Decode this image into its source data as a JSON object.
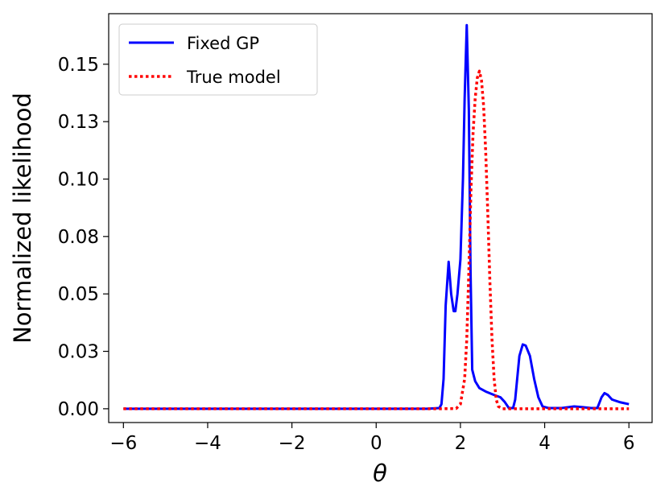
{
  "chart_data": {
    "type": "line",
    "title": "",
    "xlabel": "θ",
    "ylabel": "Normalized likelihood",
    "xlim": [
      -6.35,
      6.55
    ],
    "ylim": [
      -0.006,
      0.172
    ],
    "xticks": [
      -6,
      -4,
      -2,
      0,
      2,
      4,
      6
    ],
    "xtick_labels": [
      "−6",
      "−4",
      "−2",
      "0",
      "2",
      "4",
      "6"
    ],
    "yticks": [
      0.0,
      0.025,
      0.05,
      0.075,
      0.1,
      0.125,
      0.15
    ],
    "ytick_labels": [
      "0.00",
      "0.03",
      "0.05",
      "0.08",
      "0.10",
      "0.13",
      "0.15"
    ],
    "grid": false,
    "legend_position": "top-left",
    "series": [
      {
        "name": "Fixed GP",
        "color": "#0000ff",
        "style": "solid",
        "x": [
          -6,
          -4,
          -2,
          0,
          1.2,
          1.5,
          1.55,
          1.6,
          1.65,
          1.72,
          1.78,
          1.84,
          1.88,
          1.93,
          2.0,
          2.06,
          2.1,
          2.15,
          2.2,
          2.24,
          2.28,
          2.35,
          2.45,
          2.6,
          2.8,
          2.95,
          3.05,
          3.15,
          3.25,
          3.3,
          3.4,
          3.48,
          3.55,
          3.65,
          3.75,
          3.85,
          3.95,
          4.1,
          4.4,
          4.7,
          4.9,
          5.1,
          5.25,
          5.35,
          5.42,
          5.5,
          5.6,
          5.8,
          6.0
        ],
        "y": [
          0,
          0,
          0,
          0,
          0,
          0.0003,
          0.002,
          0.013,
          0.045,
          0.064,
          0.05,
          0.0425,
          0.0425,
          0.05,
          0.065,
          0.1,
          0.135,
          0.167,
          0.13,
          0.06,
          0.017,
          0.012,
          0.009,
          0.0075,
          0.006,
          0.005,
          0.003,
          0.0003,
          0.0003,
          0.004,
          0.023,
          0.028,
          0.0275,
          0.023,
          0.013,
          0.005,
          0.001,
          0.0003,
          0.0003,
          0.001,
          0.0007,
          0.0003,
          0.0003,
          0.005,
          0.0068,
          0.006,
          0.004,
          0.0028,
          0.002
        ]
      },
      {
        "name": "True model",
        "color": "#ff0000",
        "style": "dotted",
        "x": [
          -6,
          -4,
          -2,
          0,
          1.5,
          1.9,
          2.0,
          2.1,
          2.15,
          2.2,
          2.25,
          2.3,
          2.35,
          2.4,
          2.45,
          2.5,
          2.55,
          2.6,
          2.65,
          2.7,
          2.75,
          2.8,
          2.85,
          2.9,
          3.0,
          4.0,
          5.0,
          6.0
        ],
        "y": [
          0,
          0,
          0,
          0,
          0,
          0.0001,
          0.002,
          0.013,
          0.03,
          0.06,
          0.095,
          0.12,
          0.135,
          0.144,
          0.147,
          0.143,
          0.132,
          0.112,
          0.085,
          0.055,
          0.03,
          0.013,
          0.004,
          0.001,
          0,
          0,
          0,
          0
        ]
      }
    ]
  }
}
